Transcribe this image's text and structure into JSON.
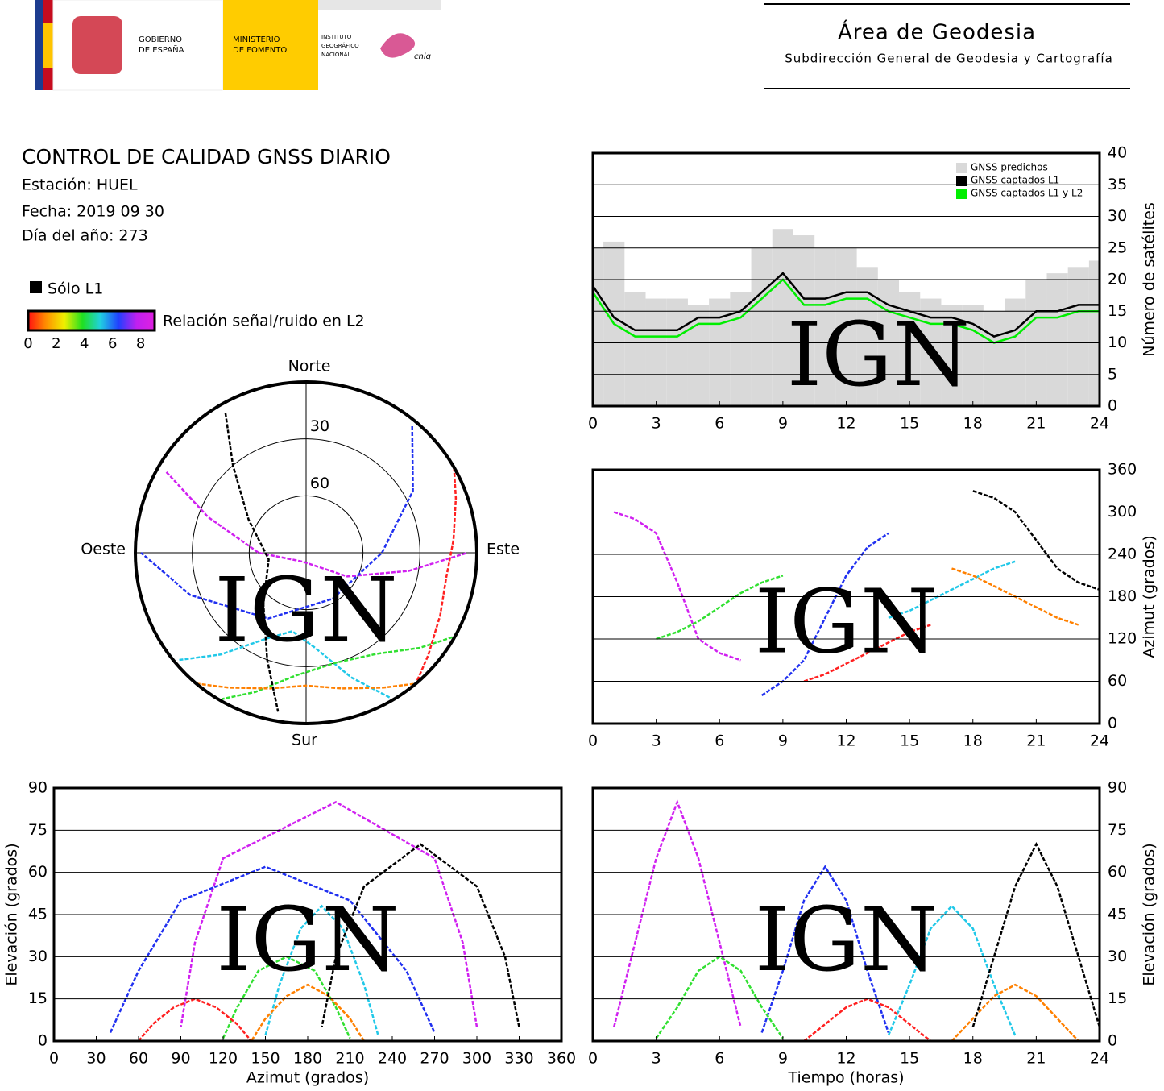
{
  "header": {
    "gov_lines": [
      "GOBIERNO",
      "DE ESPAÑA"
    ],
    "ministry_lines": [
      "MINISTERIO",
      "DE FOMENTO"
    ],
    "institute_lines": [
      "INSTITUTO",
      "GEOGRÁFICO",
      "NACIONAL"
    ],
    "logo_text": "cnig",
    "area": "Área de Geodesia",
    "subdirection": "Subdirección General de Geodesia y Cartografía"
  },
  "report": {
    "title": "CONTROL DE CALIDAD GNSS DIARIO",
    "station": "Estación: HUEL",
    "date": "Fecha: 2019 09 30",
    "doy": "Día del año: 273"
  },
  "legend": {
    "l1_only": "Sólo L1",
    "l1_only_color": "#000000",
    "colorbar_label": "Relación señal/ruido en L2",
    "clim": [
      0,
      9
    ],
    "ticks": [
      0,
      2,
      4,
      6,
      8
    ],
    "colors": [
      "#ff1010",
      "#ff9000",
      "#f0f000",
      "#20e020",
      "#20d0e0",
      "#2040ff",
      "#c020f0",
      "#e020e0"
    ]
  },
  "watermark": "IGN",
  "chart_data": [
    {
      "type": "bar-line",
      "x": [
        0,
        1,
        2,
        3,
        4,
        5,
        6,
        7,
        8,
        9,
        10,
        11,
        12,
        13,
        14,
        15,
        16,
        17,
        18,
        19,
        20,
        21,
        22,
        23,
        24
      ],
      "series": [
        {
          "name": "GNSS predichos",
          "color": "#d9d9d9",
          "style": "bar",
          "values": [
            25,
            26,
            18,
            17,
            17,
            16,
            17,
            18,
            25,
            28,
            27,
            25,
            25,
            22,
            20,
            18,
            17,
            16,
            16,
            15,
            17,
            20,
            21,
            22,
            23
          ]
        },
        {
          "name": "GNSS captados L1",
          "color": "#000000",
          "style": "line",
          "values": [
            19,
            14,
            12,
            12,
            12,
            14,
            14,
            15,
            18,
            21,
            17,
            17,
            18,
            18,
            16,
            15,
            14,
            14,
            13,
            11,
            12,
            15,
            15,
            16,
            16
          ]
        },
        {
          "name": "GNSS captados L1 y L2",
          "color": "#00ee00",
          "style": "line",
          "values": [
            18,
            13,
            11,
            11,
            11,
            13,
            13,
            14,
            17,
            20,
            16,
            16,
            17,
            17,
            15,
            14,
            13,
            13,
            12,
            10,
            11,
            14,
            14,
            15,
            15
          ]
        }
      ],
      "xlim": [
        0,
        24
      ],
      "xticks": [
        0,
        3,
        6,
        9,
        12,
        15,
        18,
        21,
        24
      ],
      "ylim": [
        0,
        40
      ],
      "yticks": [
        0,
        5,
        10,
        15,
        20,
        25,
        30,
        35,
        40
      ],
      "ylabel": "Número de satélites",
      "yaxis_side": "right",
      "grid": "y",
      "legend": "upper right"
    },
    {
      "type": "polar",
      "rlim": [
        0,
        90
      ],
      "rticks": [
        30,
        60
      ],
      "directions": {
        "north": "Norte",
        "south": "Sur",
        "east": "Este",
        "west": "Oeste"
      },
      "series": [
        {
          "color": "#d020f0",
          "azimuth": [
            300,
            290,
            270,
            200,
            120,
            100,
            90
          ],
          "elevation": [
            5,
            35,
            65,
            85,
            65,
            35,
            5
          ]
        },
        {
          "color": "#2030f0",
          "azimuth": [
            40,
            60,
            90,
            150,
            210,
            250,
            270
          ],
          "elevation": [
            3,
            25,
            50,
            62,
            50,
            25,
            3
          ]
        },
        {
          "color": "#20c8e8",
          "azimuth": [
            150,
            160,
            175,
            190,
            205,
            220,
            230
          ],
          "elevation": [
            2,
            20,
            40,
            48,
            40,
            20,
            2
          ]
        },
        {
          "color": "#30e030",
          "azimuth": [
            120,
            130,
            145,
            165,
            185,
            200,
            210
          ],
          "elevation": [
            1,
            12,
            25,
            30,
            25,
            12,
            1
          ]
        },
        {
          "color": "#ff8000",
          "azimuth": [
            220,
            210,
            195,
            180,
            165,
            150,
            140
          ],
          "elevation": [
            0,
            8,
            16,
            20,
            16,
            8,
            0
          ]
        },
        {
          "color": "#ff2020",
          "azimuth": [
            60,
            70,
            85,
            100,
            115,
            130,
            140
          ],
          "elevation": [
            0,
            6,
            12,
            15,
            12,
            6,
            0
          ]
        },
        {
          "color": "#000000",
          "azimuth": [
            330,
            320,
            300,
            260,
            220,
            200,
            190
          ],
          "elevation": [
            5,
            30,
            55,
            70,
            55,
            30,
            5
          ]
        }
      ]
    },
    {
      "type": "scatter",
      "xlim": [
        0,
        24
      ],
      "xticks": [
        0,
        3,
        6,
        9,
        12,
        15,
        18,
        21,
        24
      ],
      "ylim": [
        0,
        360
      ],
      "yticks": [
        0,
        60,
        120,
        180,
        240,
        300,
        360
      ],
      "ylabel": "Azimut (grados)",
      "yaxis_side": "right",
      "grid": "y",
      "series": [
        {
          "color": "#d020f0",
          "x": [
            1,
            2,
            3,
            4,
            5,
            6,
            7
          ],
          "values": [
            300,
            290,
            270,
            200,
            120,
            100,
            90
          ]
        },
        {
          "color": "#2030f0",
          "x": [
            8,
            9,
            10,
            11,
            12,
            13,
            14
          ],
          "values": [
            40,
            60,
            90,
            150,
            210,
            250,
            270
          ]
        },
        {
          "color": "#20c8e8",
          "x": [
            14,
            15,
            16,
            17,
            18,
            19,
            20
          ],
          "values": [
            150,
            160,
            175,
            190,
            205,
            220,
            230
          ]
        },
        {
          "color": "#30e030",
          "x": [
            3,
            4,
            5,
            6,
            7,
            8,
            9
          ],
          "values": [
            120,
            130,
            145,
            165,
            185,
            200,
            210
          ]
        },
        {
          "color": "#ff8000",
          "x": [
            17,
            18,
            19,
            20,
            21,
            22,
            23
          ],
          "values": [
            220,
            210,
            195,
            180,
            165,
            150,
            140
          ]
        },
        {
          "color": "#ff2020",
          "x": [
            10,
            11,
            12,
            13,
            14,
            15,
            16
          ],
          "values": [
            60,
            70,
            85,
            100,
            115,
            130,
            140
          ]
        },
        {
          "color": "#000000",
          "x": [
            18,
            19,
            20,
            21,
            22,
            23,
            24
          ],
          "values": [
            330,
            320,
            300,
            260,
            220,
            200,
            190
          ]
        }
      ]
    },
    {
      "type": "scatter",
      "xlim": [
        0,
        360
      ],
      "xticks": [
        0,
        30,
        60,
        90,
        120,
        150,
        180,
        210,
        240,
        270,
        300,
        330,
        360
      ],
      "ylim": [
        0,
        90
      ],
      "yticks": [
        0,
        15,
        30,
        45,
        60,
        75,
        90
      ],
      "xlabel": "Azimut (grados)",
      "ylabel": "Elevación (grados)",
      "yaxis_side": "left",
      "grid": "y",
      "series": [
        {
          "color": "#d020f0",
          "x": [
            300,
            290,
            270,
            200,
            120,
            100,
            90
          ],
          "values": [
            5,
            35,
            65,
            85,
            65,
            35,
            5
          ]
        },
        {
          "color": "#2030f0",
          "x": [
            40,
            60,
            90,
            150,
            210,
            250,
            270
          ],
          "values": [
            3,
            25,
            50,
            62,
            50,
            25,
            3
          ]
        },
        {
          "color": "#20c8e8",
          "x": [
            150,
            160,
            175,
            190,
            205,
            220,
            230
          ],
          "values": [
            2,
            20,
            40,
            48,
            40,
            20,
            2
          ]
        },
        {
          "color": "#30e030",
          "x": [
            120,
            130,
            145,
            165,
            185,
            200,
            210
          ],
          "values": [
            1,
            12,
            25,
            30,
            25,
            12,
            1
          ]
        },
        {
          "color": "#ff8000",
          "x": [
            220,
            210,
            195,
            180,
            165,
            150,
            140
          ],
          "values": [
            0,
            8,
            16,
            20,
            16,
            8,
            0
          ]
        },
        {
          "color": "#ff2020",
          "x": [
            60,
            70,
            85,
            100,
            115,
            130,
            140
          ],
          "values": [
            0,
            6,
            12,
            15,
            12,
            6,
            0
          ]
        },
        {
          "color": "#000000",
          "x": [
            330,
            320,
            300,
            260,
            220,
            200,
            190
          ],
          "values": [
            5,
            30,
            55,
            70,
            55,
            30,
            5
          ]
        }
      ]
    },
    {
      "type": "scatter",
      "xlim": [
        0,
        24
      ],
      "xticks": [
        0,
        3,
        6,
        9,
        12,
        15,
        18,
        21,
        24
      ],
      "ylim": [
        0,
        90
      ],
      "yticks": [
        0,
        15,
        30,
        45,
        60,
        75,
        90
      ],
      "xlabel": "Tiempo (horas)",
      "ylabel": "Elevación (grados)",
      "yaxis_side": "right",
      "grid": "y",
      "series": [
        {
          "color": "#d020f0",
          "x": [
            1,
            2,
            3,
            4,
            5,
            6,
            7
          ],
          "values": [
            5,
            35,
            65,
            85,
            65,
            35,
            5
          ]
        },
        {
          "color": "#2030f0",
          "x": [
            8,
            9,
            10,
            11,
            12,
            13,
            14
          ],
          "values": [
            3,
            25,
            50,
            62,
            50,
            25,
            3
          ]
        },
        {
          "color": "#20c8e8",
          "x": [
            14,
            15,
            16,
            17,
            18,
            19,
            20
          ],
          "values": [
            2,
            20,
            40,
            48,
            40,
            20,
            2
          ]
        },
        {
          "color": "#30e030",
          "x": [
            3,
            4,
            5,
            6,
            7,
            8,
            9
          ],
          "values": [
            1,
            12,
            25,
            30,
            25,
            12,
            1
          ]
        },
        {
          "color": "#ff8000",
          "x": [
            17,
            18,
            19,
            20,
            21,
            22,
            23
          ],
          "values": [
            0,
            8,
            16,
            20,
            16,
            8,
            0
          ]
        },
        {
          "color": "#ff2020",
          "x": [
            10,
            11,
            12,
            13,
            14,
            15,
            16
          ],
          "values": [
            0,
            6,
            12,
            15,
            12,
            6,
            0
          ]
        },
        {
          "color": "#000000",
          "x": [
            18,
            19,
            20,
            21,
            22,
            23,
            24
          ],
          "values": [
            5,
            30,
            55,
            70,
            55,
            30,
            5
          ]
        }
      ]
    }
  ]
}
